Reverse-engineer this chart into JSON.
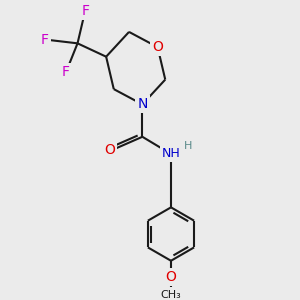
{
  "background_color": "#eeeeee",
  "bond_color": "#1a1a1a",
  "bond_width": 1.5,
  "atom_colors": {
    "O": "#e00000",
    "N": "#0000cc",
    "F": "#cc00cc",
    "C": "#1a1a1a",
    "H": "#5a8a8a"
  },
  "font_size_atom": 10,
  "fig_bg": "#ebebeb"
}
